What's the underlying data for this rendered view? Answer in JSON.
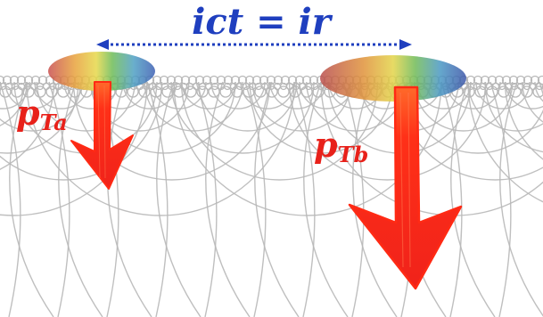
{
  "equation": "ict = ir",
  "labels": {
    "left_momentum": {
      "base": "p",
      "subscript": "Ta"
    },
    "right_momentum": {
      "base": "p",
      "subscript": "Tb"
    }
  },
  "colors": {
    "equation": "#1f3fbf",
    "span_arrow": "#1f3fbf",
    "momentum_arrow": "#ff2a14",
    "label": "#e8211a",
    "mesh": "#b8b8b8"
  },
  "icons": [
    "double-headed-arrow-icon",
    "down-arrow-icon"
  ]
}
